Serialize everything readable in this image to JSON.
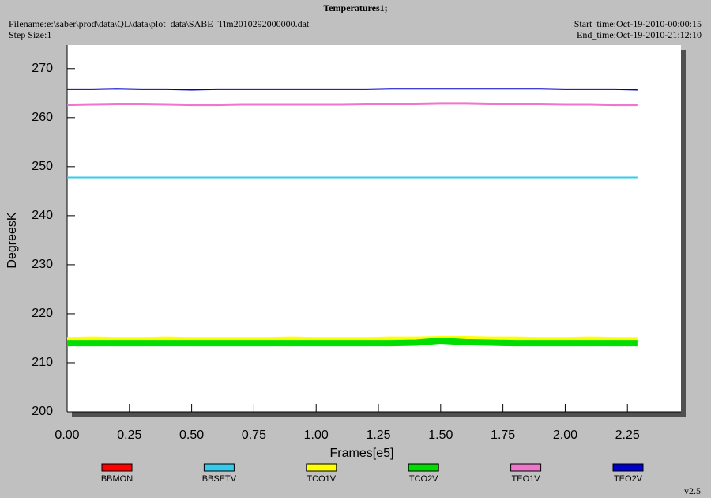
{
  "chart_data": {
    "type": "line",
    "title": "Temperatures1;",
    "filename": "Filename:e:\\saber\\prod\\data\\QL\\data\\plot_data\\SABE_Tlm2010292000000.dat",
    "step_size": "Step Size:1",
    "start_time": "Start_time:Oct-19-2010-00:00:15",
    "end_time": "End_time:Oct-19-2010-21:12:10",
    "version": "v2.5",
    "x_label": "Frames[e5]",
    "y_label": "DegreesK",
    "xlim": [
      0,
      2.465
    ],
    "ylim": [
      200,
      274.8
    ],
    "xticks": [
      {
        "value": 0,
        "label": "0.00"
      },
      {
        "value": 0.25,
        "label": "0.25"
      },
      {
        "value": 0.5,
        "label": "0.50"
      },
      {
        "value": 0.75,
        "label": "0.75"
      },
      {
        "value": 1,
        "label": "1.00"
      },
      {
        "value": 1.25,
        "label": "1.25"
      },
      {
        "value": 1.5,
        "label": "1.50"
      },
      {
        "value": 1.75,
        "label": "1.75"
      },
      {
        "value": 2,
        "label": "2.00"
      },
      {
        "value": 2.25,
        "label": "2.25"
      }
    ],
    "yticks": [
      200,
      210,
      220,
      230,
      240,
      250,
      260,
      270
    ],
    "x": [
      0,
      0.1,
      0.2,
      0.3,
      0.4,
      0.5,
      0.6,
      0.7,
      0.8,
      0.9,
      1.0,
      1.1,
      1.2,
      1.3,
      1.4,
      1.5,
      1.6,
      1.7,
      1.8,
      1.9,
      2.0,
      2.1,
      2.2,
      2.29
    ],
    "series": [
      {
        "name": "BBMON",
        "color": "#ff0000",
        "values": [
          null,
          null,
          null,
          null,
          null,
          null,
          null,
          null,
          null,
          null,
          null,
          null,
          null,
          null,
          null,
          null,
          null,
          null,
          null,
          null,
          null,
          null,
          null,
          null
        ]
      },
      {
        "name": "BBSETV",
        "color": "#33ccee",
        "values": [
          247.8,
          247.8,
          247.8,
          247.8,
          247.8,
          247.8,
          247.8,
          247.8,
          247.8,
          247.8,
          247.8,
          247.8,
          247.8,
          247.8,
          247.8,
          247.8,
          247.8,
          247.8,
          247.8,
          247.8,
          247.8,
          247.8,
          247.8,
          247.8
        ]
      },
      {
        "name": "TCO1V",
        "color": "#ffff00",
        "values": [
          214.8,
          214.9,
          214.8,
          214.8,
          214.9,
          214.8,
          214.8,
          214.8,
          214.8,
          214.9,
          214.8,
          214.8,
          214.8,
          214.9,
          214.9,
          215.0,
          215.0,
          214.9,
          214.9,
          214.8,
          214.8,
          214.9,
          214.8,
          214.8
        ]
      },
      {
        "name": "TCO2V",
        "color": "#00dd00",
        "values": [
          214.0,
          214.0,
          214.0,
          214.0,
          214.0,
          214.0,
          214.0,
          214.0,
          214.0,
          214.0,
          214.0,
          214.0,
          214.0,
          214.0,
          214.1,
          214.5,
          214.2,
          214.1,
          214.0,
          214.0,
          214.0,
          214.0,
          214.0,
          214.0
        ]
      },
      {
        "name": "TEO1V",
        "color": "#ee77cc",
        "values": [
          262.6,
          262.7,
          262.8,
          262.8,
          262.7,
          262.6,
          262.6,
          262.7,
          262.7,
          262.7,
          262.7,
          262.7,
          262.8,
          262.8,
          262.8,
          262.9,
          262.9,
          262.8,
          262.8,
          262.8,
          262.7,
          262.7,
          262.6,
          262.6
        ]
      },
      {
        "name": "TEO2V",
        "color": "#0000cc",
        "values": [
          265.8,
          265.8,
          265.9,
          265.8,
          265.8,
          265.7,
          265.8,
          265.8,
          265.8,
          265.8,
          265.8,
          265.8,
          265.8,
          265.9,
          265.9,
          265.9,
          265.9,
          265.9,
          265.9,
          265.9,
          265.8,
          265.8,
          265.8,
          265.7
        ]
      }
    ],
    "line_widths": [
      2,
      2,
      6,
      8,
      3,
      2
    ]
  }
}
